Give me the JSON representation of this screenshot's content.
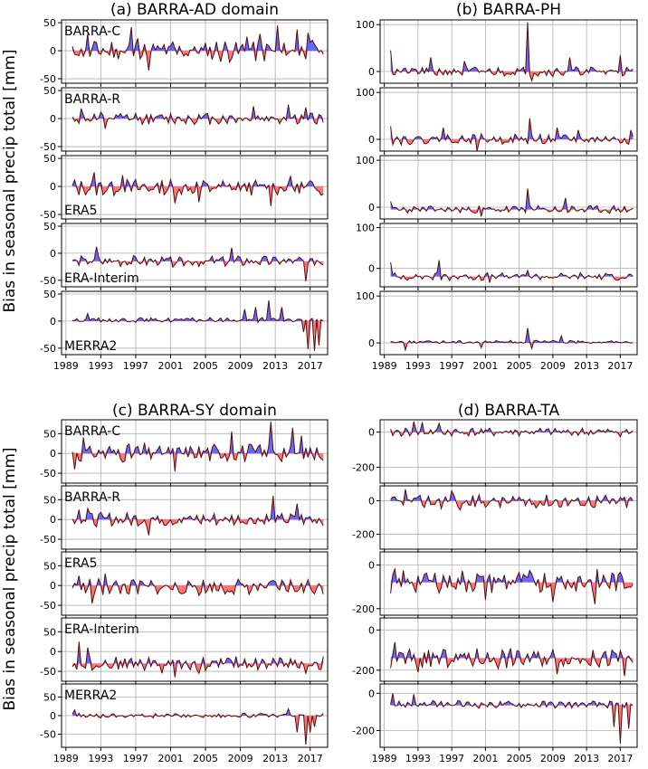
{
  "figure": {
    "ylabel": "Bias in seasonal precip total [mm]",
    "x_tick_labels": [
      "1989",
      "1993",
      "1997",
      "2001",
      "2005",
      "2009",
      "2013",
      "2017"
    ],
    "positive_color": "#4d4dff",
    "negative_color": "#ff6666",
    "line_color": "#5a0a0a",
    "grid_color": "#b0b0b0"
  },
  "chart_data": [
    {
      "type": "area",
      "title": "(a) BARRA-AD domain",
      "x_range": [
        1988.5,
        2019.0
      ],
      "rows": [
        {
          "name": "BARRA-C",
          "label": "BARRA-C",
          "label_pos": "top-left",
          "ylim": [
            -58,
            55
          ],
          "yticks": [
            -50,
            0,
            50
          ],
          "ref": 0,
          "bias": 0,
          "amp": 18,
          "seed": 11,
          "spikes": [
            [
              1991.5,
              30
            ],
            [
              1996.5,
              42
            ],
            [
              1997.2,
              22
            ],
            [
              1998.5,
              -35
            ],
            [
              2009.8,
              25
            ],
            [
              2011.2,
              30
            ],
            [
              2013.3,
              45
            ],
            [
              2015.5,
              38
            ],
            [
              2016.8,
              32
            ]
          ]
        },
        {
          "name": "BARRA-R",
          "label": "BARRA-R",
          "label_pos": "top-left",
          "ylim": [
            -58,
            55
          ],
          "yticks": [
            -50,
            0,
            50
          ],
          "ref": 0,
          "bias": 0,
          "amp": 10,
          "seed": 12,
          "spikes": [
            [
              1990.8,
              18
            ],
            [
              1993.5,
              -18
            ],
            [
              2010.5,
              22
            ],
            [
              2014.5,
              25
            ],
            [
              2016.5,
              20
            ]
          ]
        },
        {
          "name": "ERA5",
          "label": "ERA5",
          "label_pos": "bottom-left",
          "ylim": [
            -58,
            55
          ],
          "yticks": [
            -50,
            0,
            50
          ],
          "ref": 0,
          "bias": -2,
          "amp": 14,
          "seed": 13,
          "spikes": [
            [
              1992.2,
              25
            ],
            [
              1995.5,
              20
            ],
            [
              2001.5,
              -30
            ],
            [
              2004.2,
              -28
            ],
            [
              2012.5,
              -35
            ],
            [
              2014.8,
              18
            ]
          ]
        },
        {
          "name": "ERA-Interim",
          "label": "ERA-Interim",
          "label_pos": "bottom-left",
          "ylim": [
            -62,
            55
          ],
          "yticks": [
            -50,
            0,
            50
          ],
          "ref": -15,
          "bias": -15,
          "amp": 9,
          "seed": 14,
          "spikes": [
            [
              1992.5,
              12
            ],
            [
              2008.0,
              10
            ],
            [
              2016.6,
              -52
            ]
          ]
        },
        {
          "name": "MERRA2",
          "label": "MERRA2",
          "label_pos": "bottom-left",
          "ylim": [
            -62,
            55
          ],
          "yticks": [
            -50,
            0,
            50
          ],
          "ref": 0,
          "bias": 2,
          "amp": 4,
          "seed": 15,
          "spikes": [
            [
              1991.5,
              14
            ],
            [
              2009.5,
              22
            ],
            [
              2010.8,
              26
            ],
            [
              2012.2,
              38
            ],
            [
              2013.8,
              26
            ],
            [
              2016.2,
              -20
            ],
            [
              2016.8,
              -52
            ],
            [
              2017.4,
              -55
            ],
            [
              2018.1,
              -45
            ]
          ]
        }
      ]
    },
    {
      "type": "area",
      "title": "(b) BARRA-PH",
      "x_range": [
        1988.5,
        2019.0
      ],
      "rows": [
        {
          "name": "BARRA-C",
          "label": "",
          "label_pos": "",
          "ylim": [
            -25,
            110
          ],
          "yticks": [
            0,
            100
          ],
          "ref": 0,
          "bias": 0,
          "amp": 10,
          "seed": 21,
          "spikes": [
            [
              1989.7,
              45
            ],
            [
              1994.5,
              30
            ],
            [
              1998.5,
              22
            ],
            [
              2006.0,
              105
            ],
            [
              2006.6,
              -20
            ],
            [
              2011.0,
              30
            ],
            [
              2017.0,
              35
            ]
          ]
        },
        {
          "name": "BARRA-R",
          "label": "",
          "label_pos": "",
          "ylim": [
            -25,
            110
          ],
          "yticks": [
            0,
            100
          ],
          "ref": 0,
          "bias": 0,
          "amp": 10,
          "seed": 22,
          "spikes": [
            [
              1989.7,
              28
            ],
            [
              1996.0,
              25
            ],
            [
              2000.0,
              -25
            ],
            [
              2006.2,
              45
            ],
            [
              2009.5,
              25
            ],
            [
              2012.0,
              20
            ],
            [
              2018.2,
              20
            ]
          ]
        },
        {
          "name": "ERA5",
          "label": "",
          "label_pos": "",
          "ylim": [
            -25,
            110
          ],
          "yticks": [
            0,
            100
          ],
          "ref": -5,
          "bias": -5,
          "amp": 8,
          "seed": 23,
          "spikes": [
            [
              1989.7,
              12
            ],
            [
              2006.0,
              40
            ],
            [
              2010.5,
              20
            ],
            [
              2000.5,
              -20
            ]
          ]
        },
        {
          "name": "ERA-Interim",
          "label": "",
          "label_pos": "",
          "ylim": [
            -45,
            110
          ],
          "yticks": [
            0,
            100
          ],
          "ref": -20,
          "bias": -20,
          "amp": 9,
          "seed": 24,
          "spikes": [
            [
              1989.7,
              15
            ],
            [
              1995.5,
              20
            ],
            [
              2001.5,
              -35
            ],
            [
              2006.0,
              -5
            ]
          ]
        },
        {
          "name": "MERRA2",
          "label": "",
          "label_pos": "",
          "ylim": [
            -25,
            110
          ],
          "yticks": [
            0,
            100
          ],
          "ref": 0,
          "bias": 2,
          "amp": 3,
          "seed": 25,
          "spikes": [
            [
              1991.5,
              -15
            ],
            [
              2000.5,
              -10
            ],
            [
              2006.0,
              32
            ],
            [
              2006.6,
              -12
            ],
            [
              2010.0,
              15
            ]
          ]
        }
      ]
    },
    {
      "type": "area",
      "title": "(c) BARRA-SY domain",
      "x_range": [
        1988.5,
        2019.0
      ],
      "rows": [
        {
          "name": "BARRA-C",
          "label": "BARRA-C",
          "label_pos": "top-left",
          "ylim": [
            -75,
            85
          ],
          "yticks": [
            -50,
            0,
            50
          ],
          "ref": 0,
          "bias": 2,
          "amp": 22,
          "seed": 31,
          "spikes": [
            [
              1990.0,
              -40
            ],
            [
              1991.0,
              40
            ],
            [
              2001.5,
              -45
            ],
            [
              2008.0,
              55
            ],
            [
              2012.5,
              80
            ],
            [
              2015.0,
              65
            ],
            [
              2016.0,
              45
            ]
          ]
        },
        {
          "name": "BARRA-R",
          "label": "BARRA-R",
          "label_pos": "top-left",
          "ylim": [
            -75,
            85
          ],
          "yticks": [
            -50,
            0,
            50
          ],
          "ref": 0,
          "bias": 0,
          "amp": 16,
          "seed": 32,
          "spikes": [
            [
              1990.5,
              25
            ],
            [
              1991.5,
              28
            ],
            [
              1998.5,
              -40
            ],
            [
              2012.8,
              60
            ],
            [
              2015.5,
              40
            ]
          ]
        },
        {
          "name": "ERA5",
          "label": "ERA5",
          "label_pos": "top-left",
          "ylim": [
            -75,
            85
          ],
          "yticks": [
            -50,
            0,
            50
          ],
          "ref": 0,
          "bias": -5,
          "amp": 20,
          "seed": 33,
          "spikes": [
            [
              1990.5,
              25
            ],
            [
              1992.0,
              -45
            ],
            [
              1993.5,
              30
            ]
          ]
        },
        {
          "name": "ERA-Interim",
          "label": "ERA-Interim",
          "label_pos": "top-left",
          "ylim": [
            -75,
            85
          ],
          "yticks": [
            -50,
            0,
            50
          ],
          "ref": -30,
          "bias": -30,
          "amp": 16,
          "seed": 34,
          "spikes": [
            [
              1990.5,
              25
            ],
            [
              1991.5,
              10
            ],
            [
              2000.0,
              -55
            ],
            [
              2001.5,
              -65
            ],
            [
              2004.2,
              -55
            ],
            [
              2016.5,
              -55
            ]
          ]
        },
        {
          "name": "MERRA2",
          "label": "MERRA2",
          "label_pos": "top-left",
          "ylim": [
            -85,
            85
          ],
          "yticks": [
            -50,
            0,
            50
          ],
          "ref": 0,
          "bias": 0,
          "amp": 6,
          "seed": 35,
          "spikes": [
            [
              1990.0,
              15
            ],
            [
              2014.5,
              18
            ],
            [
              2015.6,
              -45
            ],
            [
              2016.4,
              -78
            ],
            [
              2017.0,
              -45
            ],
            [
              2017.6,
              -30
            ]
          ]
        }
      ]
    },
    {
      "type": "area",
      "title": "(d) BARRA-TA",
      "x_range": [
        1988.5,
        2019.0
      ],
      "rows": [
        {
          "name": "BARRA-C",
          "label": "",
          "label_pos": "",
          "ylim": [
            -290,
            70
          ],
          "yticks": [
            -200,
            0
          ],
          "ref": 0,
          "bias": 0,
          "amp": 22,
          "seed": 41,
          "spikes": [
            [
              1992.5,
              60
            ],
            [
              1993.5,
              55
            ],
            [
              1995.5,
              50
            ]
          ]
        },
        {
          "name": "BARRA-R",
          "label": "",
          "label_pos": "",
          "ylim": [
            -290,
            90
          ],
          "yticks": [
            -200,
            0
          ],
          "ref": 0,
          "bias": -5,
          "amp": 38,
          "seed": 42,
          "spikes": [
            [
              1991.5,
              70
            ],
            [
              1997.0,
              60
            ],
            [
              1998.0,
              -55
            ]
          ]
        },
        {
          "name": "ERA5",
          "label": "",
          "label_pos": "",
          "ylim": [
            -230,
            60
          ],
          "yticks": [
            -200,
            0
          ],
          "ref": -80,
          "bias": -75,
          "amp": 50,
          "seed": 43,
          "spikes": [
            [
              1989.8,
              -130
            ],
            [
              2001.0,
              -160
            ],
            [
              2009.0,
              -170
            ],
            [
              2014.0,
              -180
            ]
          ]
        },
        {
          "name": "ERA-Interim",
          "label": "",
          "label_pos": "",
          "ylim": [
            -255,
            60
          ],
          "yticks": [
            -200,
            0
          ],
          "ref": -140,
          "bias": -140,
          "amp": 45,
          "seed": 44,
          "spikes": [
            [
              1989.8,
              -190
            ],
            [
              1990.3,
              -60
            ],
            [
              1993.0,
              -210
            ],
            [
              2009.5,
              -220
            ],
            [
              2017.5,
              -230
            ]
          ]
        },
        {
          "name": "MERRA2",
          "label": "",
          "label_pos": "",
          "ylim": [
            -290,
            50
          ],
          "yticks": [
            -200,
            0
          ],
          "ref": -65,
          "bias": -60,
          "amp": 18,
          "seed": 45,
          "spikes": [
            [
              1990.0,
              0
            ],
            [
              1992.5,
              -5
            ],
            [
              2017.0,
              -270
            ],
            [
              2016.3,
              -180
            ],
            [
              2018.0,
              -190
            ]
          ]
        }
      ]
    }
  ]
}
